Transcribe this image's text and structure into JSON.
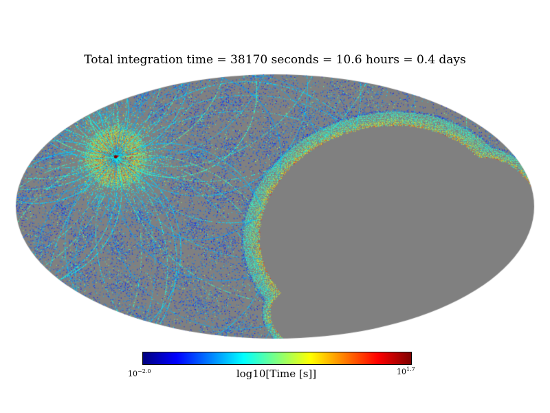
{
  "chart_data": {
    "type": "heatmap",
    "projection": "mollweide",
    "title": "Total integration time = 38170 seconds = 10.6 hours = 0.4 days",
    "total_integration": {
      "seconds": 38170,
      "hours": 10.6,
      "days": 0.4
    },
    "colorbar": {
      "label": "log10[Time [s]]",
      "scale": "log10",
      "range_exponents": [
        -2.0,
        1.7
      ],
      "colormap": "jet",
      "ticks": [
        {
          "base": "10",
          "exp": "−2.0"
        },
        {
          "base": "10",
          "exp": "1.7"
        }
      ],
      "gradient": [
        "#00007f",
        "#0000ff",
        "#007fff",
        "#00ffff",
        "#7fff7f",
        "#ffff00",
        "#ff7f00",
        "#ff0000",
        "#7f0000"
      ]
    },
    "map": {
      "unobserved_color": "#808080",
      "background_color": "#ffffff",
      "hotspot_frac": {
        "x": 0.195,
        "y": 0.315
      },
      "description": "All-sky Mollweide map of log10 integration time: dense blue/cyan speckled scan coverage with looping scan-ring arcs converging on a bright green/yellow hotspot with red core at upper-left; large gray unobserved kidney-shaped region right of center and gray gaps between scan rings"
    }
  }
}
